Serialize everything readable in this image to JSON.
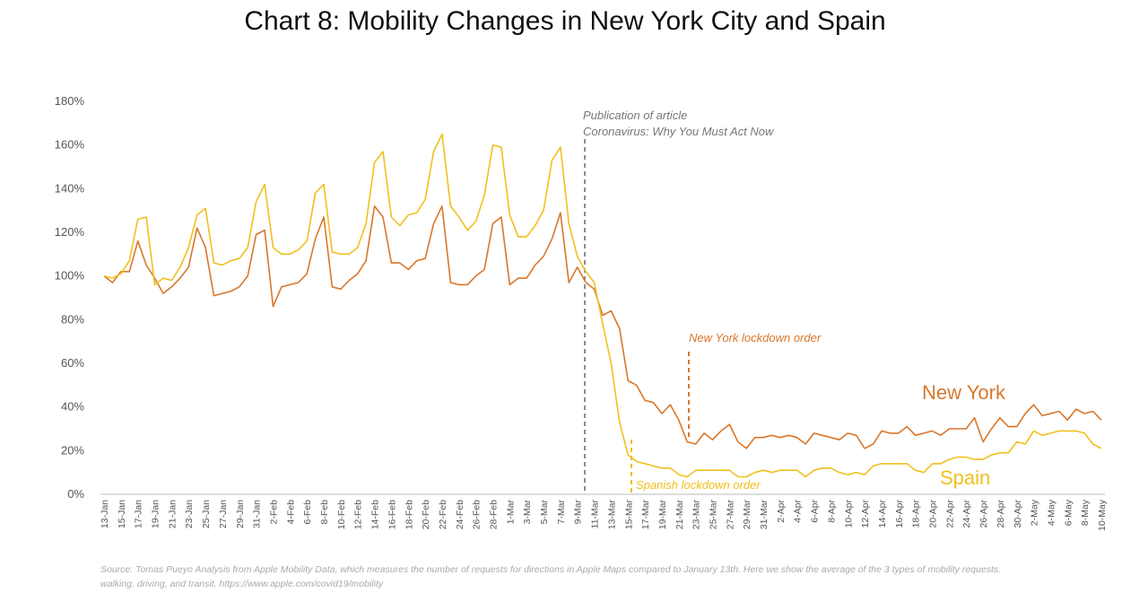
{
  "chart_data": {
    "type": "line",
    "title": "Chart 8: Mobility Changes in New York City and Spain",
    "categories": [
      "13-Jan",
      null,
      "15-Jan",
      null,
      "17-Jan",
      null,
      "19-Jan",
      null,
      "21-Jan",
      null,
      "23-Jan",
      null,
      "25-Jan",
      null,
      "27-Jan",
      null,
      "29-Jan",
      null,
      "31-Jan",
      null,
      "2-Feb",
      null,
      "4-Feb",
      null,
      "6-Feb",
      null,
      "8-Feb",
      null,
      "10-Feb",
      null,
      "12-Feb",
      null,
      "14-Feb",
      null,
      "16-Feb",
      null,
      "18-Feb",
      null,
      "20-Feb",
      null,
      "22-Feb",
      null,
      "24-Feb",
      null,
      "26-Feb",
      null,
      "28-Feb",
      null,
      "1-Mar",
      null,
      "3-Mar",
      null,
      "5-Mar",
      null,
      "7-Mar",
      null,
      "9-Mar",
      null,
      "11-Mar",
      null,
      "13-Mar",
      null,
      "15-Mar",
      null,
      "17-Mar",
      null,
      "19-Mar",
      null,
      "21-Mar",
      null,
      "23-Mar",
      null,
      "25-Mar",
      null,
      "27-Mar",
      null,
      "29-Mar",
      null,
      "31-Mar",
      null,
      "2-Apr",
      null,
      "4-Apr",
      null,
      "6-Apr",
      null,
      "8-Apr",
      null,
      "10-Apr",
      null,
      "12-Apr",
      null,
      "14-Apr",
      null,
      "16-Apr",
      null,
      "18-Apr",
      null,
      "20-Apr",
      null,
      "22-Apr",
      null,
      "24-Apr",
      null,
      "26-Apr",
      null,
      "28-Apr",
      null,
      "30-Apr",
      null,
      "2-May",
      null,
      "4-May",
      null,
      "6-May",
      null,
      "8-May",
      null,
      "10-May"
    ],
    "series": [
      {
        "name": "New York",
        "color": "#d9772b",
        "values": [
          100,
          97,
          102,
          102,
          116,
          105,
          99,
          92,
          95,
          99,
          104,
          122,
          113,
          91,
          92,
          93,
          95,
          100,
          119,
          121,
          86,
          95,
          96,
          97,
          101,
          117,
          127,
          95,
          94,
          98,
          101,
          107,
          132,
          127,
          106,
          106,
          103,
          107,
          108,
          124,
          132,
          97,
          96,
          96,
          100,
          103,
          124,
          127,
          96,
          99,
          99,
          105,
          109,
          117,
          129,
          97,
          104,
          97,
          94,
          82,
          84,
          76,
          52,
          50,
          43,
          42,
          37,
          41,
          34,
          24,
          23,
          28,
          25,
          29,
          32,
          24,
          21,
          26,
          26,
          27,
          26,
          27,
          26,
          23,
          28,
          27,
          26,
          25,
          28,
          27,
          21,
          23,
          29,
          28,
          28,
          31,
          27,
          28,
          29,
          27,
          30,
          30,
          30,
          35,
          24,
          30,
          35,
          31,
          31,
          37,
          41,
          36,
          37,
          38,
          34,
          39,
          37,
          38,
          34
        ]
      },
      {
        "name": "Spain",
        "color": "#f2bf1d",
        "values": [
          100,
          99,
          101,
          107,
          126,
          127,
          96,
          99,
          98,
          104,
          113,
          128,
          131,
          106,
          105,
          107,
          108,
          113,
          134,
          142,
          113,
          110,
          110,
          112,
          116,
          138,
          142,
          111,
          110,
          110,
          113,
          124,
          152,
          157,
          127,
          123,
          128,
          129,
          135,
          157,
          165,
          132,
          127,
          121,
          125,
          137,
          160,
          159,
          128,
          118,
          118,
          123,
          130,
          153,
          159,
          124,
          109,
          102,
          97,
          78,
          60,
          33,
          18,
          15,
          14,
          13,
          12,
          12,
          9,
          8,
          11,
          11,
          11,
          11,
          11,
          8,
          8,
          10,
          11,
          10,
          11,
          11,
          11,
          8,
          11,
          12,
          12,
          10,
          9,
          10,
          9,
          13,
          14,
          14,
          14,
          14,
          11,
          10,
          14,
          14,
          16,
          17,
          17,
          16,
          16,
          18,
          19,
          19,
          24,
          23,
          29,
          27,
          28,
          29,
          29,
          29,
          28,
          23,
          21
        ]
      }
    ],
    "ylim": [
      0,
      180
    ],
    "yticks": [
      {
        "value": 0,
        "label": "0%"
      },
      {
        "value": 20,
        "label": "20%"
      },
      {
        "value": 40,
        "label": "40%"
      },
      {
        "value": 60,
        "label": "60%"
      },
      {
        "value": 80,
        "label": "80%"
      },
      {
        "value": 100,
        "label": "100%"
      },
      {
        "value": 120,
        "label": "120%"
      },
      {
        "value": 140,
        "label": "140%"
      },
      {
        "value": 160,
        "label": "160%"
      },
      {
        "value": 180,
        "label": "180%"
      }
    ],
    "annotations": [
      "Publication of article",
      "Coronavirus: Why You Must Act Now",
      "New York lockdown order",
      "Spanish lockdown order"
    ],
    "source": "Source: Tomas Pueyo Analysis from Apple Mobility Data, which measures the number of requests for directions in Apple Maps compared to January 13th. Here we show the average of the 3 types of mobility requests:",
    "source_line2": "walking, driving, and transit. https://www.apple.com/covid19/mobility"
  }
}
